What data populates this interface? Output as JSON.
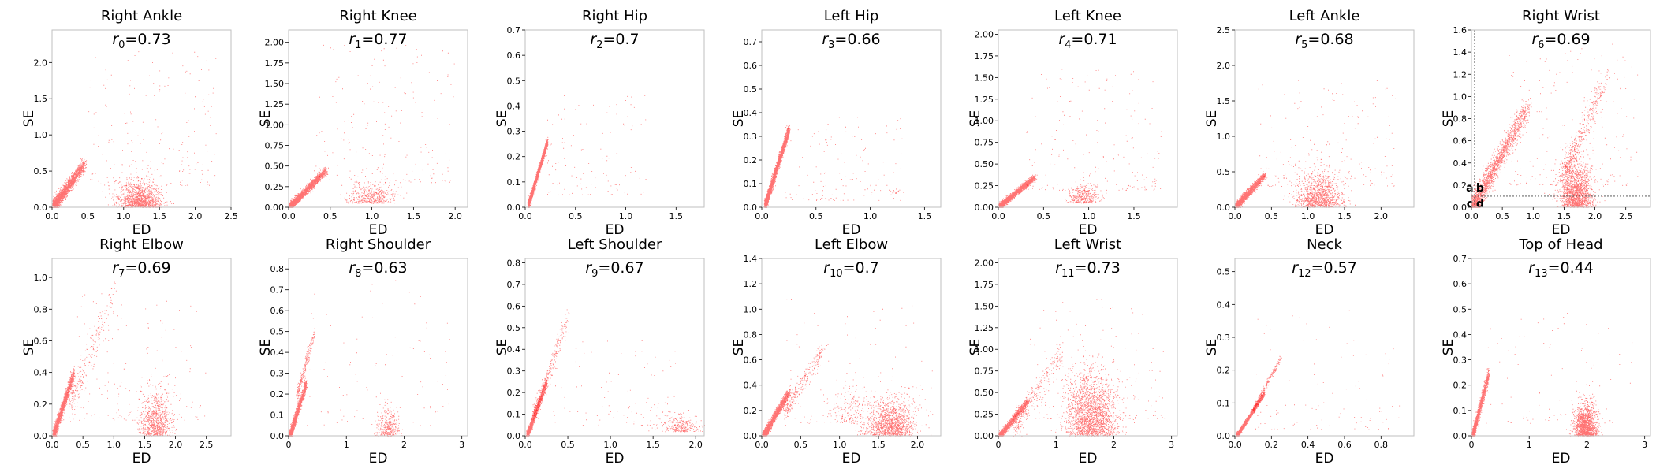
{
  "figure": {
    "type": "scatter-grid",
    "point_color": "#ff0000",
    "frame_color": "#bfbfbf",
    "text_color": "#000000"
  },
  "chart_data": [
    {
      "type": "scatter",
      "title": "Right Ankle",
      "xlabel": "ED",
      "ylabel": "SE",
      "annotation": {
        "sym": "r",
        "sub": "0",
        "val": "=0.73"
      },
      "xlim": [
        0,
        2.5
      ],
      "ylim": [
        0,
        2.45
      ],
      "xticks": [
        "0.0",
        "0.5",
        "1.0",
        "1.5",
        "2.0",
        "2.5"
      ],
      "yticks": [
        "0.0",
        "0.5",
        "1.0",
        "1.5",
        "2.0"
      ],
      "clusters": [
        {
          "x": [
            0.02,
            0.45
          ],
          "y": [
            0.02,
            0.6
          ],
          "n": 2200,
          "shape": "diag",
          "spread": 0.07
        },
        {
          "x": [
            0.9,
            1.55
          ],
          "y": [
            0.0,
            0.4
          ],
          "n": 1400,
          "shape": "blob"
        },
        {
          "x": [
            0.5,
            2.3
          ],
          "y": [
            0.3,
            2.2
          ],
          "n": 220,
          "shape": "scatter"
        }
      ]
    },
    {
      "type": "scatter",
      "title": "Right Knee",
      "xlabel": "ED",
      "ylabel": "SE",
      "annotation": {
        "sym": "r",
        "sub": "1",
        "val": "=0.77"
      },
      "xlim": [
        0,
        2.15
      ],
      "ylim": [
        0,
        2.15
      ],
      "xticks": [
        "0.0",
        "0.5",
        "1.0",
        "1.5",
        "2.0"
      ],
      "yticks": [
        "0.00",
        "0.25",
        "0.50",
        "0.75",
        "1.00",
        "1.25",
        "1.50",
        "1.75",
        "2.00"
      ],
      "clusters": [
        {
          "x": [
            0.02,
            0.45
          ],
          "y": [
            0.02,
            0.45
          ],
          "n": 2000,
          "shape": "diag",
          "spread": 0.05
        },
        {
          "x": [
            0.7,
            1.3
          ],
          "y": [
            0.05,
            0.35
          ],
          "n": 500,
          "shape": "blob"
        },
        {
          "x": [
            0.3,
            2.0
          ],
          "y": [
            0.3,
            2.0
          ],
          "n": 200,
          "shape": "scatter"
        }
      ]
    },
    {
      "type": "scatter",
      "title": "Right Hip",
      "xlabel": "ED",
      "ylabel": "SE",
      "annotation": {
        "sym": "r",
        "sub": "2",
        "val": "=0.7"
      },
      "xlim": [
        0,
        1.78
      ],
      "ylim": [
        0,
        0.7
      ],
      "xticks": [
        "0.0",
        "0.5",
        "1.0",
        "1.5"
      ],
      "yticks": [
        "0.0",
        "0.1",
        "0.2",
        "0.3",
        "0.4",
        "0.5",
        "0.6",
        "0.7"
      ],
      "clusters": [
        {
          "x": [
            0.03,
            0.22
          ],
          "y": [
            0.01,
            0.26
          ],
          "n": 3000,
          "shape": "diag",
          "spread": 0.03
        },
        {
          "x": [
            0.2,
            1.2
          ],
          "y": [
            0.05,
            0.45
          ],
          "n": 120,
          "shape": "scatter"
        }
      ]
    },
    {
      "type": "scatter",
      "title": "Left Hip",
      "xlabel": "ED",
      "ylabel": "SE",
      "annotation": {
        "sym": "r",
        "sub": "3",
        "val": "=0.66"
      },
      "xlim": [
        0,
        1.65
      ],
      "ylim": [
        0,
        0.75
      ],
      "xticks": [
        "0.0",
        "0.5",
        "1.0",
        "1.5"
      ],
      "yticks": [
        "0.0",
        "0.1",
        "0.2",
        "0.3",
        "0.4",
        "0.5",
        "0.6",
        "0.7"
      ],
      "clusters": [
        {
          "x": [
            0.03,
            0.25
          ],
          "y": [
            0.01,
            0.33
          ],
          "n": 3000,
          "shape": "diag",
          "spread": 0.035
        },
        {
          "x": [
            0.2,
            1.3
          ],
          "y": [
            0.03,
            0.4
          ],
          "n": 140,
          "shape": "scatter"
        },
        {
          "x": [
            1.15,
            1.3
          ],
          "y": [
            0.06,
            0.09
          ],
          "n": 25,
          "shape": "blob"
        }
      ]
    },
    {
      "type": "scatter",
      "title": "Left Knee",
      "xlabel": "ED",
      "ylabel": "SE",
      "annotation": {
        "sym": "r",
        "sub": "4",
        "val": "=0.71"
      },
      "xlim": [
        0,
        1.98
      ],
      "ylim": [
        0,
        2.05
      ],
      "xticks": [
        "0.0",
        "0.5",
        "1.0",
        "1.5"
      ],
      "yticks": [
        "0.00",
        "0.25",
        "0.50",
        "0.75",
        "1.00",
        "1.25",
        "1.50",
        "1.75",
        "2.00"
      ],
      "clusters": [
        {
          "x": [
            0.02,
            0.4
          ],
          "y": [
            0.02,
            0.35
          ],
          "n": 2000,
          "shape": "diag",
          "spread": 0.05
        },
        {
          "x": [
            0.75,
            1.15
          ],
          "y": [
            0.05,
            0.3
          ],
          "n": 400,
          "shape": "blob"
        },
        {
          "x": [
            0.3,
            1.8
          ],
          "y": [
            0.2,
            1.6
          ],
          "n": 200,
          "shape": "scatter"
        }
      ]
    },
    {
      "type": "scatter",
      "title": "Left Ankle",
      "xlabel": "ED",
      "ylabel": "SE",
      "annotation": {
        "sym": "r",
        "sub": "5",
        "val": "=0.68"
      },
      "xlim": [
        0,
        2.45
      ],
      "ylim": [
        0,
        2.5
      ],
      "xticks": [
        "0.0",
        "0.5",
        "1.0",
        "1.5",
        "2.0"
      ],
      "yticks": [
        "0.0",
        "0.5",
        "1.0",
        "1.5",
        "2.0",
        "2.5"
      ],
      "clusters": [
        {
          "x": [
            0.02,
            0.4
          ],
          "y": [
            0.02,
            0.45
          ],
          "n": 1800,
          "shape": "diag",
          "spread": 0.06
        },
        {
          "x": [
            0.8,
            1.5
          ],
          "y": [
            0.0,
            0.6
          ],
          "n": 1200,
          "shape": "blob"
        },
        {
          "x": [
            0.3,
            2.2
          ],
          "y": [
            0.3,
            1.8
          ],
          "n": 200,
          "shape": "scatter"
        }
      ]
    },
    {
      "type": "scatter",
      "title": "Right Wrist",
      "xlabel": "ED",
      "ylabel": "SE",
      "annotation": {
        "sym": "r",
        "sub": "6",
        "val": "=0.69"
      },
      "xlim": [
        0,
        2.9
      ],
      "ylim": [
        0,
        1.6
      ],
      "xticks": [
        "0.0",
        "0.5",
        "1.0",
        "1.5",
        "2.0",
        "2.5"
      ],
      "yticks": [
        "0.0",
        "0.2",
        "0.4",
        "0.6",
        "0.8",
        "1.0",
        "1.2",
        "1.4",
        "1.6"
      ],
      "quadrant": {
        "vline": 0.05,
        "hline": 0.1,
        "labels": [
          "a",
          "b",
          "c",
          "d"
        ]
      },
      "clusters": [
        {
          "x": [
            0.02,
            0.9
          ],
          "y": [
            0.0,
            0.9
          ],
          "n": 2000,
          "shape": "diag",
          "spread": 0.06
        },
        {
          "x": [
            1.4,
            2.0
          ],
          "y": [
            0.0,
            0.5
          ],
          "n": 1800,
          "shape": "blob"
        },
        {
          "x": [
            1.5,
            2.2
          ],
          "y": [
            0.3,
            1.2
          ],
          "n": 500,
          "shape": "diag",
          "spread": 0.08
        },
        {
          "x": [
            0.5,
            2.7
          ],
          "y": [
            0.2,
            1.5
          ],
          "n": 200,
          "shape": "scatter"
        }
      ]
    },
    {
      "type": "scatter",
      "title": "Right Elbow",
      "xlabel": "ED",
      "ylabel": "SE",
      "annotation": {
        "sym": "r",
        "sub": "7",
        "val": "=0.69"
      },
      "xlim": [
        0,
        2.9
      ],
      "ylim": [
        0,
        1.12
      ],
      "xticks": [
        "0.0",
        "0.5",
        "1.0",
        "1.5",
        "2.0",
        "2.5"
      ],
      "yticks": [
        "0.0",
        "0.2",
        "0.4",
        "0.6",
        "0.8",
        "1.0"
      ],
      "clusters": [
        {
          "x": [
            0.02,
            0.35
          ],
          "y": [
            0.0,
            0.4
          ],
          "n": 1800,
          "shape": "diag",
          "spread": 0.05
        },
        {
          "x": [
            0.3,
            1.0
          ],
          "y": [
            0.2,
            0.9
          ],
          "n": 250,
          "shape": "diag",
          "spread": 0.08
        },
        {
          "x": [
            1.4,
            1.95
          ],
          "y": [
            0.0,
            0.35
          ],
          "n": 900,
          "shape": "blob"
        },
        {
          "x": [
            0.4,
            2.5
          ],
          "y": [
            0.1,
            0.9
          ],
          "n": 150,
          "shape": "scatter"
        }
      ]
    },
    {
      "type": "scatter",
      "title": "Right Shoulder",
      "xlabel": "ED",
      "ylabel": "SE",
      "annotation": {
        "sym": "r",
        "sub": "8",
        "val": "=0.63"
      },
      "xlim": [
        0,
        3.1
      ],
      "ylim": [
        0,
        0.85
      ],
      "xticks": [
        "0",
        "1",
        "2",
        "3"
      ],
      "yticks": [
        "0.0",
        "0.1",
        "0.2",
        "0.3",
        "0.4",
        "0.5",
        "0.6",
        "0.7",
        "0.8"
      ],
      "clusters": [
        {
          "x": [
            0.02,
            0.3
          ],
          "y": [
            0.0,
            0.25
          ],
          "n": 1800,
          "shape": "diag",
          "spread": 0.05
        },
        {
          "x": [
            0.15,
            0.45
          ],
          "y": [
            0.2,
            0.5
          ],
          "n": 250,
          "shape": "diag",
          "spread": 0.06
        },
        {
          "x": [
            1.5,
            1.95
          ],
          "y": [
            0.0,
            0.15
          ],
          "n": 350,
          "shape": "blob"
        },
        {
          "x": [
            0.3,
            2.8
          ],
          "y": [
            0.05,
            0.75
          ],
          "n": 100,
          "shape": "scatter"
        }
      ]
    },
    {
      "type": "scatter",
      "title": "Left Shoulder",
      "xlabel": "ED",
      "ylabel": "SE",
      "annotation": {
        "sym": "r",
        "sub": "9",
        "val": "=0.67"
      },
      "xlim": [
        0,
        2.1
      ],
      "ylim": [
        0,
        0.82
      ],
      "xticks": [
        "0.0",
        "0.5",
        "1.0",
        "1.5",
        "2.0"
      ],
      "yticks": [
        "0.0",
        "0.1",
        "0.2",
        "0.3",
        "0.4",
        "0.5",
        "0.6",
        "0.7",
        "0.8"
      ],
      "clusters": [
        {
          "x": [
            0.02,
            0.25
          ],
          "y": [
            0.0,
            0.25
          ],
          "n": 1800,
          "shape": "diag",
          "spread": 0.04
        },
        {
          "x": [
            0.1,
            0.5
          ],
          "y": [
            0.1,
            0.55
          ],
          "n": 350,
          "shape": "diag",
          "spread": 0.05
        },
        {
          "x": [
            1.55,
            2.05
          ],
          "y": [
            0.02,
            0.12
          ],
          "n": 300,
          "shape": "blob"
        },
        {
          "x": [
            0.3,
            1.8
          ],
          "y": [
            0.05,
            0.45
          ],
          "n": 100,
          "shape": "scatter"
        }
      ]
    },
    {
      "type": "scatter",
      "title": "Left Elbow",
      "xlabel": "ED",
      "ylabel": "SE",
      "annotation": {
        "sym": "r",
        "sub": "10",
        "val": "=0.7"
      },
      "xlim": [
        0,
        2.3
      ],
      "ylim": [
        0,
        1.4
      ],
      "xticks": [
        "0.0",
        "0.5",
        "1.0",
        "1.5",
        "2.0"
      ],
      "yticks": [
        "0.0",
        "0.2",
        "0.4",
        "0.6",
        "0.8",
        "1.0",
        "1.2",
        "1.4"
      ],
      "clusters": [
        {
          "x": [
            0.02,
            0.35
          ],
          "y": [
            0.0,
            0.35
          ],
          "n": 1800,
          "shape": "diag",
          "spread": 0.05
        },
        {
          "x": [
            0.3,
            0.8
          ],
          "y": [
            0.2,
            0.7
          ],
          "n": 300,
          "shape": "diag",
          "spread": 0.07
        },
        {
          "x": [
            1.3,
            2.0
          ],
          "y": [
            0.0,
            0.35
          ],
          "n": 1400,
          "shape": "blob"
        },
        {
          "x": [
            0.8,
            1.4
          ],
          "y": [
            0.1,
            0.5
          ],
          "n": 200,
          "shape": "blob"
        },
        {
          "x": [
            0.3,
            2.2
          ],
          "y": [
            0.1,
            1.1
          ],
          "n": 120,
          "shape": "scatter"
        }
      ]
    },
    {
      "type": "scatter",
      "title": "Left Wrist",
      "xlabel": "ED",
      "ylabel": "SE",
      "annotation": {
        "sym": "r",
        "sub": "11",
        "val": "=0.73"
      },
      "xlim": [
        0,
        3.1
      ],
      "ylim": [
        0,
        2.05
      ],
      "xticks": [
        "0",
        "1",
        "2",
        "3"
      ],
      "yticks": [
        "0.00",
        "0.25",
        "0.50",
        "0.75",
        "1.00",
        "1.25",
        "1.50",
        "1.75",
        "2.00"
      ],
      "clusters": [
        {
          "x": [
            0.02,
            0.5
          ],
          "y": [
            0.0,
            0.4
          ],
          "n": 1500,
          "shape": "diag",
          "spread": 0.05
        },
        {
          "x": [
            0.3,
            1.1
          ],
          "y": [
            0.1,
            1.0
          ],
          "n": 300,
          "shape": "diag",
          "spread": 0.08
        },
        {
          "x": [
            1.1,
            2.1
          ],
          "y": [
            0.0,
            0.9
          ],
          "n": 2200,
          "shape": "blob"
        },
        {
          "x": [
            0.5,
            2.9
          ],
          "y": [
            0.2,
            1.6
          ],
          "n": 150,
          "shape": "scatter"
        }
      ]
    },
    {
      "type": "scatter",
      "title": "Neck",
      "xlabel": "ED",
      "ylabel": "SE",
      "annotation": {
        "sym": "r",
        "sub": "12",
        "val": "=0.57"
      },
      "xlim": [
        0,
        0.98
      ],
      "ylim": [
        0,
        0.54
      ],
      "xticks": [
        "0.0",
        "0.2",
        "0.4",
        "0.6",
        "0.8"
      ],
      "yticks": [
        "0.0",
        "0.1",
        "0.2",
        "0.3",
        "0.4",
        "0.5"
      ],
      "clusters": [
        {
          "x": [
            0.01,
            0.16
          ],
          "y": [
            0.0,
            0.13
          ],
          "n": 2600,
          "shape": "diag",
          "spread": 0.025
        },
        {
          "x": [
            0.1,
            0.25
          ],
          "y": [
            0.08,
            0.24
          ],
          "n": 300,
          "shape": "diag",
          "spread": 0.03
        },
        {
          "x": [
            0.1,
            0.9
          ],
          "y": [
            0.02,
            0.4
          ],
          "n": 100,
          "shape": "scatter"
        }
      ]
    },
    {
      "type": "scatter",
      "title": "Top of Head",
      "xlabel": "ED",
      "ylabel": "SE",
      "annotation": {
        "sym": "r",
        "sub": "13",
        "val": "=0.44"
      },
      "xlim": [
        0,
        3.1
      ],
      "ylim": [
        0,
        0.7
      ],
      "xticks": [
        "0",
        "1",
        "2",
        "3"
      ],
      "yticks": [
        "0.0",
        "0.1",
        "0.2",
        "0.3",
        "0.4",
        "0.5",
        "0.6",
        "0.7"
      ],
      "clusters": [
        {
          "x": [
            0.02,
            0.3
          ],
          "y": [
            0.0,
            0.25
          ],
          "n": 1500,
          "shape": "diag",
          "spread": 0.05
        },
        {
          "x": [
            1.75,
            2.2
          ],
          "y": [
            0.0,
            0.15
          ],
          "n": 1500,
          "shape": "blob"
        },
        {
          "x": [
            0.2,
            2.8
          ],
          "y": [
            0.05,
            0.5
          ],
          "n": 100,
          "shape": "scatter"
        }
      ]
    }
  ]
}
